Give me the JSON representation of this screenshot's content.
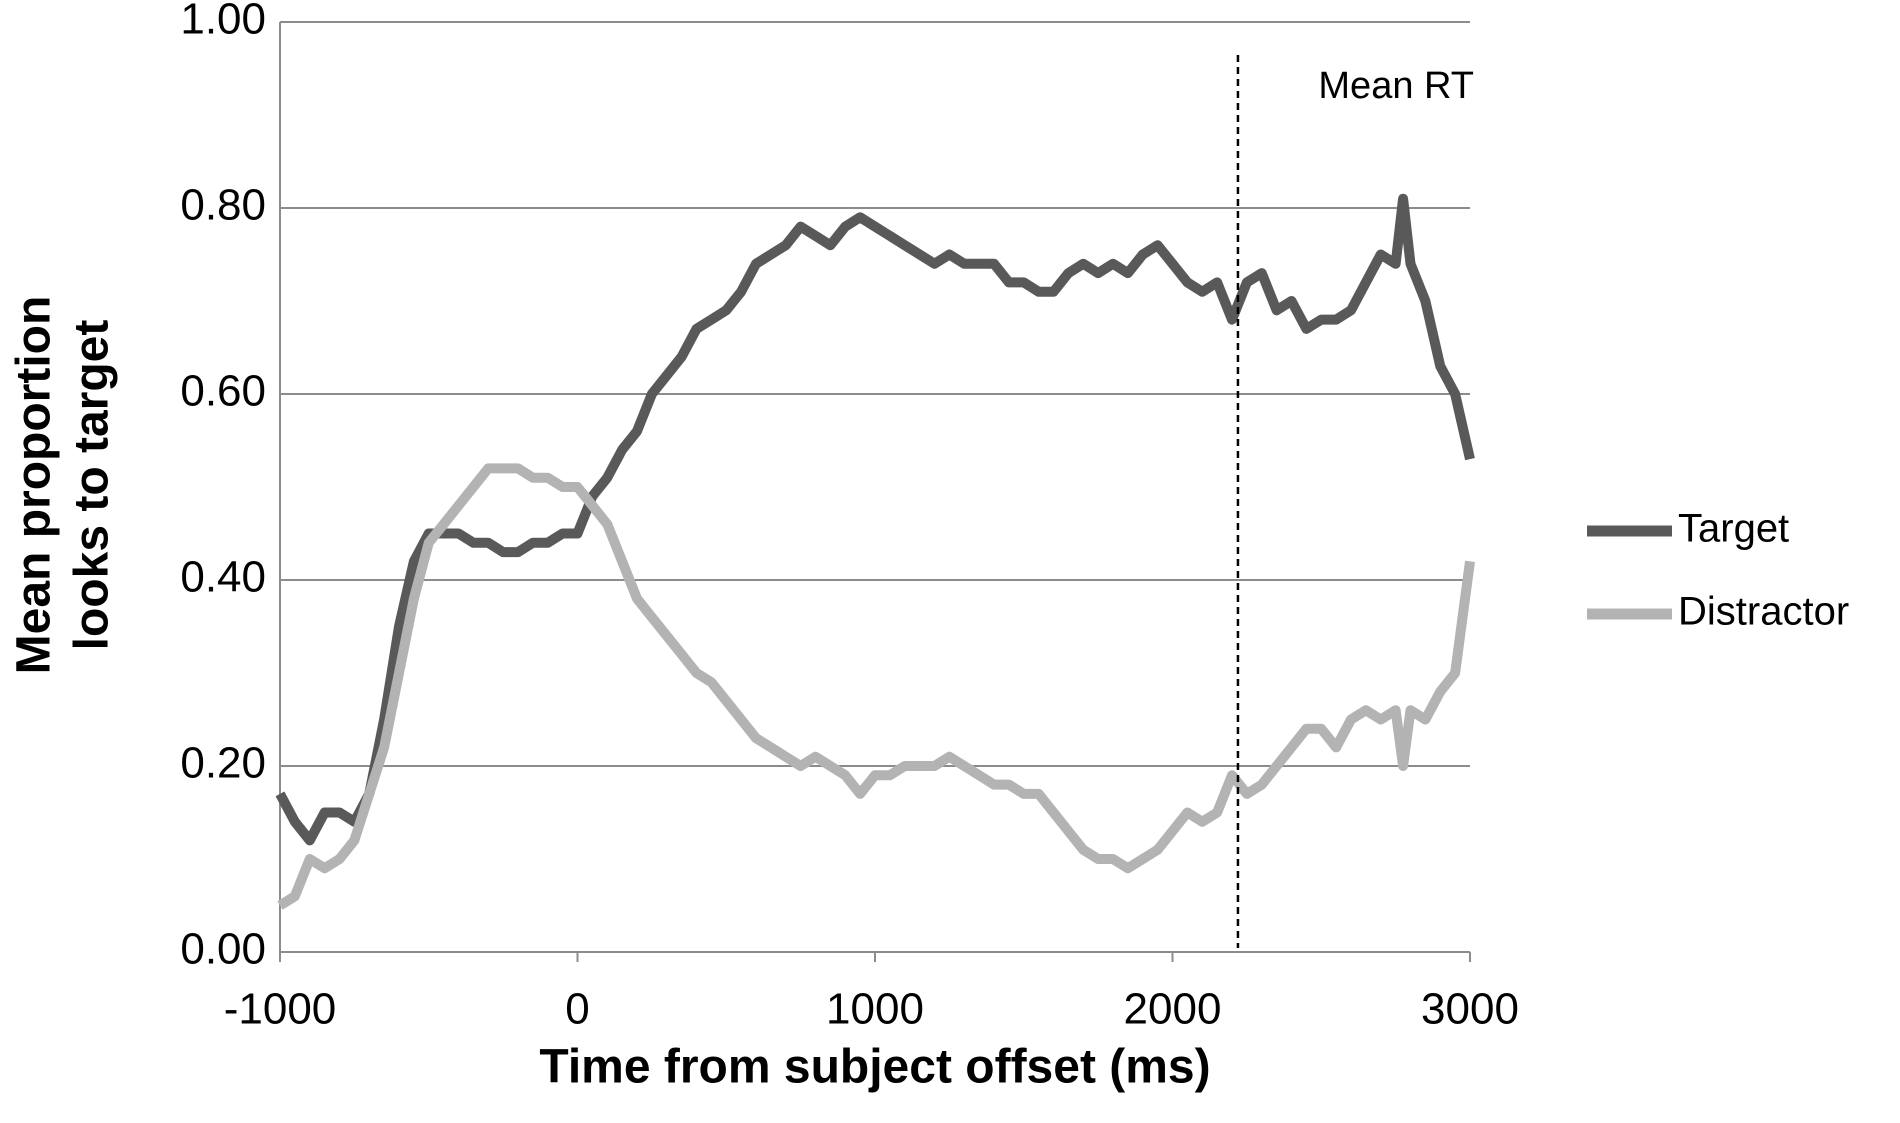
{
  "chart_data": {
    "type": "line",
    "xlabel": "Time from subject offset (ms)",
    "ylabel": [
      "Mean proportion",
      "looks to target"
    ],
    "x": [
      -1000,
      -950,
      -900,
      -850,
      -800,
      -750,
      -700,
      -650,
      -600,
      -550,
      -500,
      -450,
      -400,
      -350,
      -300,
      -250,
      -200,
      -150,
      -100,
      -50,
      0,
      50,
      100,
      150,
      200,
      250,
      300,
      350,
      400,
      450,
      500,
      550,
      600,
      650,
      700,
      750,
      800,
      850,
      900,
      950,
      1000,
      1050,
      1100,
      1150,
      1200,
      1250,
      1300,
      1350,
      1400,
      1450,
      1500,
      1550,
      1600,
      1650,
      1700,
      1750,
      1800,
      1850,
      1900,
      1950,
      2000,
      2050,
      2100,
      2150,
      2200,
      2250,
      2300,
      2350,
      2400,
      2450,
      2500,
      2550,
      2600,
      2650,
      2700,
      2750,
      2775,
      2800,
      2850,
      2900,
      2950,
      3000
    ],
    "series": [
      {
        "name": "Target",
        "color": "#595959",
        "values": [
          0.17,
          0.14,
          0.12,
          0.15,
          0.15,
          0.14,
          0.17,
          0.25,
          0.35,
          0.42,
          0.45,
          0.45,
          0.45,
          0.44,
          0.44,
          0.43,
          0.43,
          0.44,
          0.44,
          0.45,
          0.45,
          0.49,
          0.51,
          0.54,
          0.56,
          0.6,
          0.62,
          0.64,
          0.67,
          0.68,
          0.69,
          0.71,
          0.74,
          0.75,
          0.76,
          0.78,
          0.77,
          0.76,
          0.78,
          0.79,
          0.78,
          0.77,
          0.76,
          0.75,
          0.74,
          0.75,
          0.74,
          0.74,
          0.74,
          0.72,
          0.72,
          0.71,
          0.71,
          0.73,
          0.74,
          0.73,
          0.74,
          0.73,
          0.75,
          0.76,
          0.74,
          0.72,
          0.71,
          0.72,
          0.68,
          0.72,
          0.73,
          0.69,
          0.7,
          0.67,
          0.68,
          0.68,
          0.69,
          0.72,
          0.75,
          0.74,
          0.81,
          0.74,
          0.7,
          0.63,
          0.6,
          0.53
        ]
      },
      {
        "name": "Distractor",
        "color": "#b3b3b3",
        "values": [
          0.05,
          0.06,
          0.1,
          0.09,
          0.1,
          0.12,
          0.17,
          0.22,
          0.3,
          0.38,
          0.44,
          0.46,
          0.48,
          0.5,
          0.52,
          0.52,
          0.52,
          0.51,
          0.51,
          0.5,
          0.5,
          0.48,
          0.46,
          0.42,
          0.38,
          0.36,
          0.34,
          0.32,
          0.3,
          0.29,
          0.27,
          0.25,
          0.23,
          0.22,
          0.21,
          0.2,
          0.21,
          0.2,
          0.19,
          0.17,
          0.19,
          0.19,
          0.2,
          0.2,
          0.2,
          0.21,
          0.2,
          0.19,
          0.18,
          0.18,
          0.17,
          0.17,
          0.15,
          0.13,
          0.11,
          0.1,
          0.1,
          0.09,
          0.1,
          0.11,
          0.13,
          0.15,
          0.14,
          0.15,
          0.19,
          0.17,
          0.18,
          0.2,
          0.22,
          0.24,
          0.24,
          0.22,
          0.25,
          0.26,
          0.25,
          0.26,
          0.2,
          0.26,
          0.25,
          0.28,
          0.3,
          0.42
        ]
      }
    ],
    "xlim": [
      -1000,
      3000
    ],
    "xticks": [
      -1000,
      0,
      1000,
      2000,
      3000
    ],
    "ylim": [
      0,
      1
    ],
    "yticks": [
      {
        "value": 0,
        "label": "0.00"
      },
      {
        "value": 0.2,
        "label": "0.20"
      },
      {
        "value": 0.4,
        "label": "0.40"
      },
      {
        "value": 0.6,
        "label": "0.60"
      },
      {
        "value": 0.8,
        "label": "0.80"
      },
      {
        "value": 1,
        "label": "1.00"
      }
    ],
    "grid": true,
    "legend": "right",
    "vline": {
      "x": 2220,
      "label": "Mean RT",
      "color": "#000000"
    }
  }
}
